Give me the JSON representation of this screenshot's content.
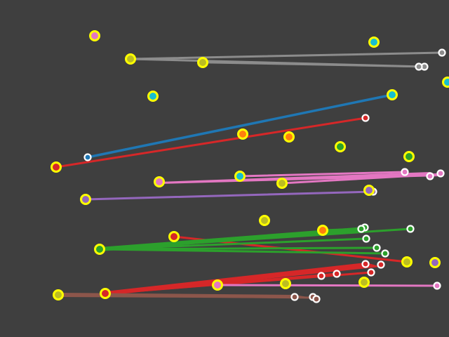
{
  "scene": {
    "background": "#3f3f3f",
    "palette": {
      "yellow_ring": "#ffff00",
      "white_ring": "#ffffff",
      "gray": "#8c8c8c",
      "blue": "#1f77b4",
      "red": "#d62728",
      "pink": "#e377c2",
      "purple": "#9467bd",
      "green": "#2ca02c",
      "brown": "#8c564b",
      "orange": "#ff7f0e",
      "cyan": "#17becf",
      "olive": "#bcbd22"
    }
  }
}
